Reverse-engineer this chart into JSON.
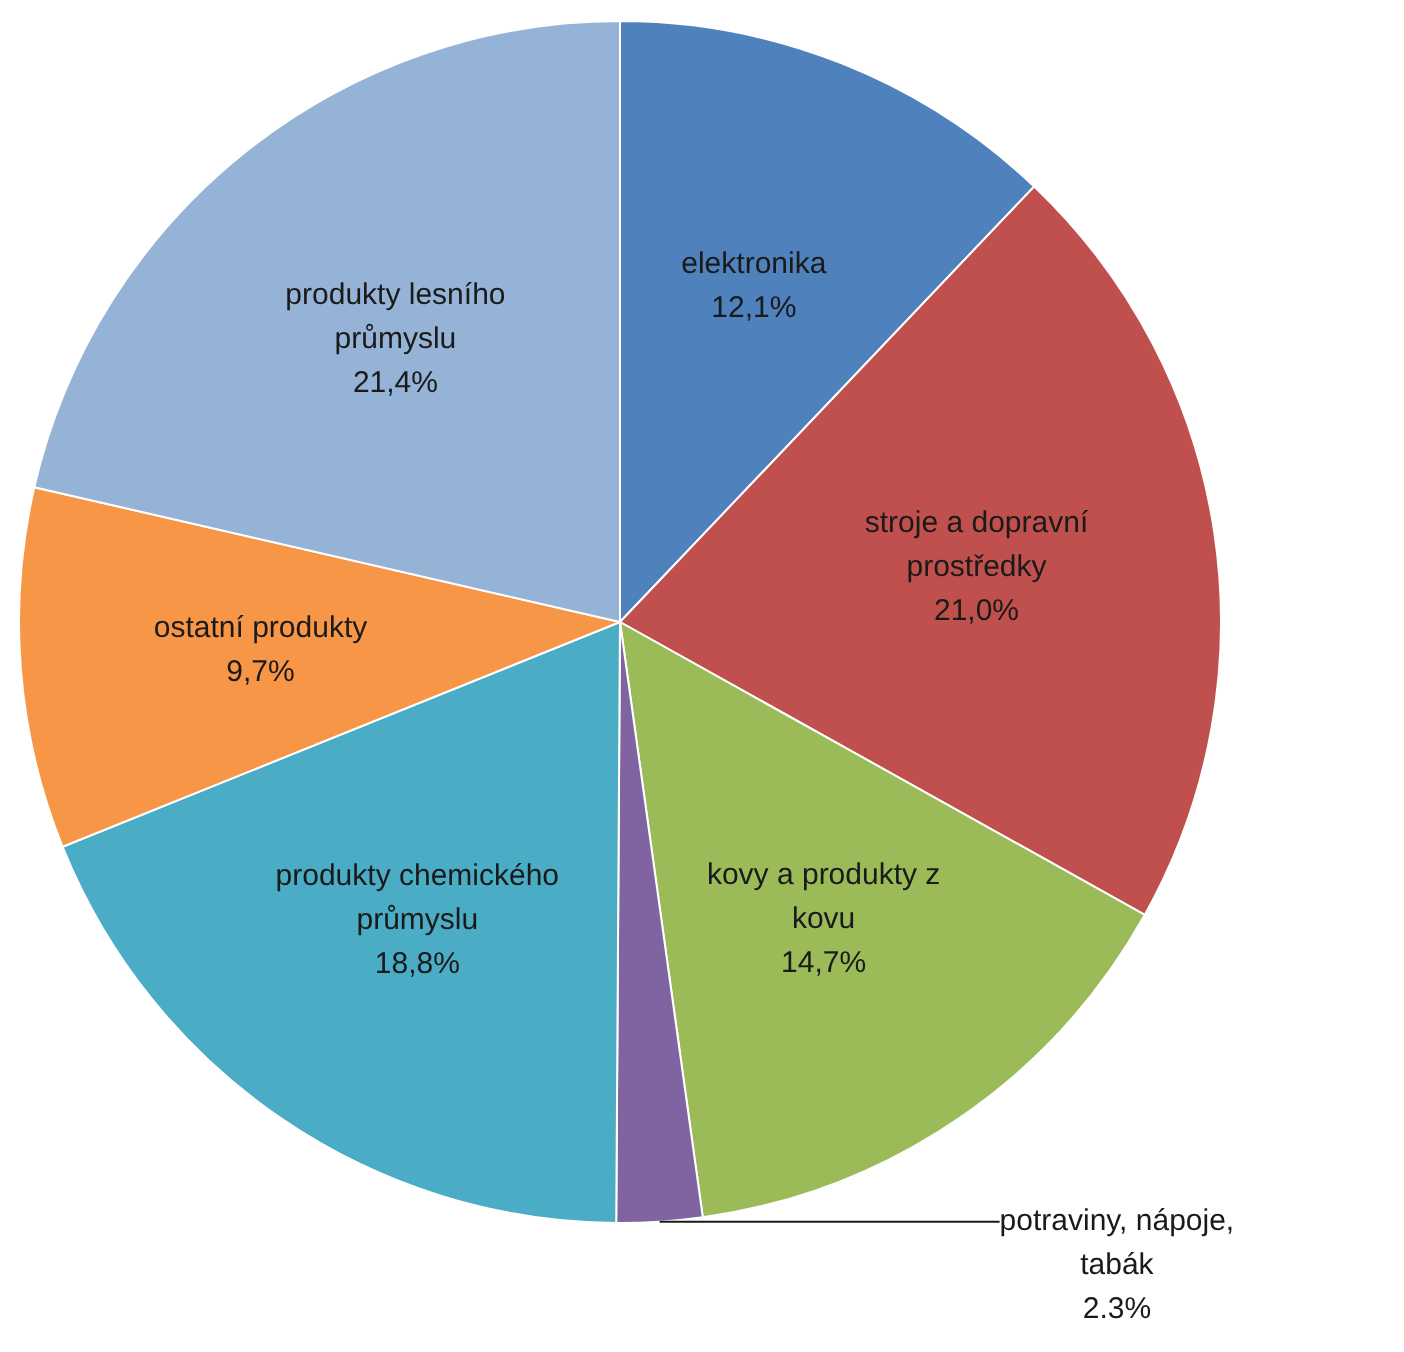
{
  "chart_data": {
    "type": "pie",
    "categories": [
      "elektronika",
      "stroje a dopravní prostředky",
      "kovy a produkty z kovu",
      "potraviny, nápoje, tabák",
      "produkty chemického průmyslu",
      "ostatní produkty",
      "produkty lesního průmyslu"
    ],
    "values": [
      12.1,
      21.0,
      14.7,
      2.3,
      18.8,
      9.7,
      21.4
    ],
    "value_labels": [
      "12,1%",
      "21,0%",
      "14,7%",
      "2.3%",
      "18,8%",
      "9,7%",
      "21,4%"
    ],
    "colors": [
      "#4f81bd",
      "#c0504d",
      "#9bbb59",
      "#8064a2",
      "#4bacc6",
      "#f79646",
      "#95b3d7"
    ],
    "legend": false
  }
}
